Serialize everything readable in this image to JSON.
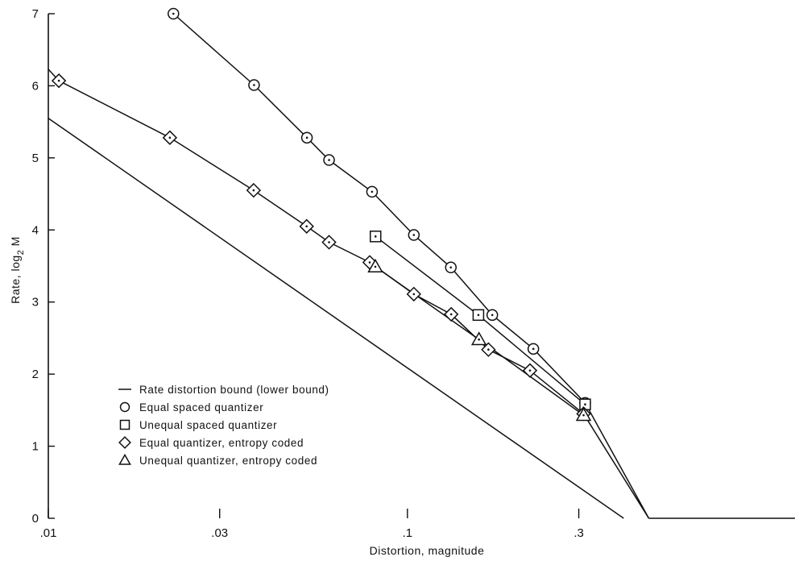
{
  "chart_data": {
    "type": "line",
    "xlabel": "Distortion, magnitude",
    "ylabel_main": "Rate, log",
    "ylabel_sub": "2",
    "ylabel_tail": " M",
    "x_scale": "log",
    "xlim": [
      0.01,
      1.2
    ],
    "ylim": [
      0,
      7
    ],
    "x_ticks": [
      {
        "value": 0.01,
        "label": ".01"
      },
      {
        "value": 0.03,
        "label": ".03"
      },
      {
        "value": 0.1,
        "label": ".1"
      },
      {
        "value": 0.3,
        "label": ".3"
      }
    ],
    "y_ticks": [
      {
        "value": 0,
        "label": "0"
      },
      {
        "value": 1,
        "label": "1"
      },
      {
        "value": 2,
        "label": "2"
      },
      {
        "value": 3,
        "label": "3"
      },
      {
        "value": 4,
        "label": "4"
      },
      {
        "value": 5,
        "label": "5"
      },
      {
        "value": 6,
        "label": "6"
      },
      {
        "value": 7,
        "label": "7"
      }
    ],
    "grid": false,
    "legend_position": "lower-left",
    "series": [
      {
        "name": "Rate distortion bound (lower bound)",
        "marker": "none",
        "points": [
          [
            0.01,
            5.55
          ],
          [
            0.4,
            0
          ]
        ]
      },
      {
        "name": "Equal spaced quantizer",
        "marker": "circle",
        "points": [
          [
            0.0223,
            7.0
          ],
          [
            0.0374,
            6.01
          ],
          [
            0.0525,
            5.28
          ],
          [
            0.0605,
            4.97
          ],
          [
            0.0797,
            4.53
          ],
          [
            0.1042,
            3.93
          ],
          [
            0.1321,
            3.48
          ],
          [
            0.1723,
            2.82
          ],
          [
            0.2242,
            2.35
          ],
          [
            0.3125,
            1.6
          ]
        ]
      },
      {
        "name": "Unequal spaced quantizer",
        "marker": "square",
        "points": [
          [
            0.0815,
            3.91
          ],
          [
            0.1576,
            2.82
          ],
          [
            0.3125,
            1.58
          ]
        ]
      },
      {
        "name": "Equal quantizer, entropy coded",
        "marker": "diamond",
        "points": [
          [
            0.0107,
            6.07
          ],
          [
            0.0218,
            5.28
          ],
          [
            0.0373,
            4.55
          ],
          [
            0.0524,
            4.05
          ],
          [
            0.0605,
            3.83
          ],
          [
            0.0785,
            3.55
          ],
          [
            0.1042,
            3.11
          ],
          [
            0.1324,
            2.83
          ],
          [
            0.1681,
            2.34
          ],
          [
            0.2194,
            2.05
          ],
          [
            0.3094,
            1.45
          ]
        ]
      },
      {
        "name": "Unequal quantizer, entropy coded",
        "marker": "triangle",
        "points": [
          [
            0.0814,
            3.49
          ],
          [
            0.1582,
            2.48
          ],
          [
            0.3094,
            1.43
          ]
        ]
      }
    ],
    "extra_lines": [
      {
        "kind": "rate-line-start",
        "points": [
          [
            0.01,
            6.23
          ],
          [
            0.0107,
            6.07
          ]
        ]
      },
      {
        "kind": "converge-tail",
        "points": [
          [
            0.3094,
            1.45
          ],
          [
            0.47,
            0
          ]
        ]
      },
      {
        "kind": "converge-tail",
        "points": [
          [
            0.3125,
            1.6
          ],
          [
            0.47,
            0
          ]
        ]
      },
      {
        "kind": "zero-rate",
        "points": [
          [
            0.47,
            0
          ],
          [
            1.2,
            0
          ]
        ]
      }
    ]
  }
}
